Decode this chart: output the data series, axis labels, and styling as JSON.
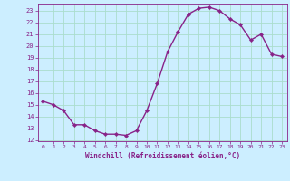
{
  "x": [
    0,
    1,
    2,
    3,
    4,
    5,
    6,
    7,
    8,
    9,
    10,
    11,
    12,
    13,
    14,
    15,
    16,
    17,
    18,
    19,
    20,
    21,
    22,
    23
  ],
  "y": [
    15.3,
    15.0,
    14.5,
    13.3,
    13.3,
    12.8,
    12.5,
    12.5,
    12.4,
    12.8,
    14.5,
    16.8,
    19.5,
    21.2,
    22.7,
    23.2,
    23.3,
    23.0,
    22.3,
    21.8,
    20.5,
    21.0,
    19.3,
    19.1
  ],
  "line_color": "#882288",
  "marker_color": "#882288",
  "bg_color": "#cceeff",
  "grid_color": "#aaddcc",
  "axis_label_color": "#882288",
  "xlabel": "Windchill (Refroidissement éolien,°C)",
  "ylim": [
    11.9,
    23.6
  ],
  "xlim": [
    -0.5,
    23.5
  ],
  "yticks": [
    12,
    13,
    14,
    15,
    16,
    17,
    18,
    19,
    20,
    21,
    22,
    23
  ],
  "xticks": [
    0,
    1,
    2,
    3,
    4,
    5,
    6,
    7,
    8,
    9,
    10,
    11,
    12,
    13,
    14,
    15,
    16,
    17,
    18,
    19,
    20,
    21,
    22,
    23
  ],
  "tick_label_color": "#882288",
  "marker_size": 2.2,
  "line_width": 1.0
}
